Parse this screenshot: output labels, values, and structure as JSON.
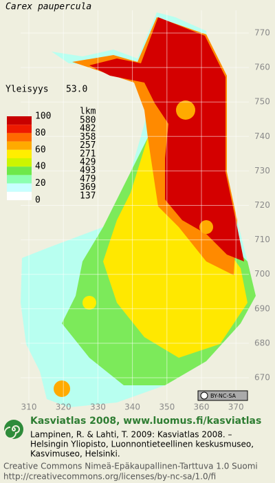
{
  "title": "Carex paupercula",
  "frequency": {
    "label": "Yleisyys",
    "value": "53.0"
  },
  "legend": {
    "scale_labels": [
      100,
      80,
      60,
      40,
      20,
      0
    ],
    "count_header": "lkm",
    "counts": [
      580,
      482,
      358,
      257,
      271,
      429,
      493,
      479,
      369,
      137
    ],
    "colors": [
      "#c80000",
      "#ee1a00",
      "#ff6a00",
      "#ffaa00",
      "#ffee00",
      "#ccf500",
      "#6ee84a",
      "#8cffb0",
      "#c8ffff",
      "#ffffff"
    ]
  },
  "grid": {
    "northing": [
      670,
      680,
      690,
      700,
      710,
      720,
      730,
      740,
      750,
      760,
      770
    ],
    "easting": [
      310,
      320,
      330,
      340,
      350,
      360,
      370
    ]
  },
  "license_badge": "BY-NC-SA",
  "footer": {
    "heading": "Kasviatlas 2008, www.luomus.fi/kasviatlas",
    "citation": [
      "Lampinen, R. & Lahti, T. 2009: Kasviatlas 2008. –",
      "Helsingin Yliopisto, Luonnontieteellinen keskusmuseo,",
      "Kasvimuseo, Helsinki."
    ],
    "license": [
      "Creative Commons Nimeä-Epäkaupallinen-Tarttuva 1.0 Suomi",
      "http://creativecommons.org/licenses/by-nc-sa/1.0/fi"
    ]
  }
}
